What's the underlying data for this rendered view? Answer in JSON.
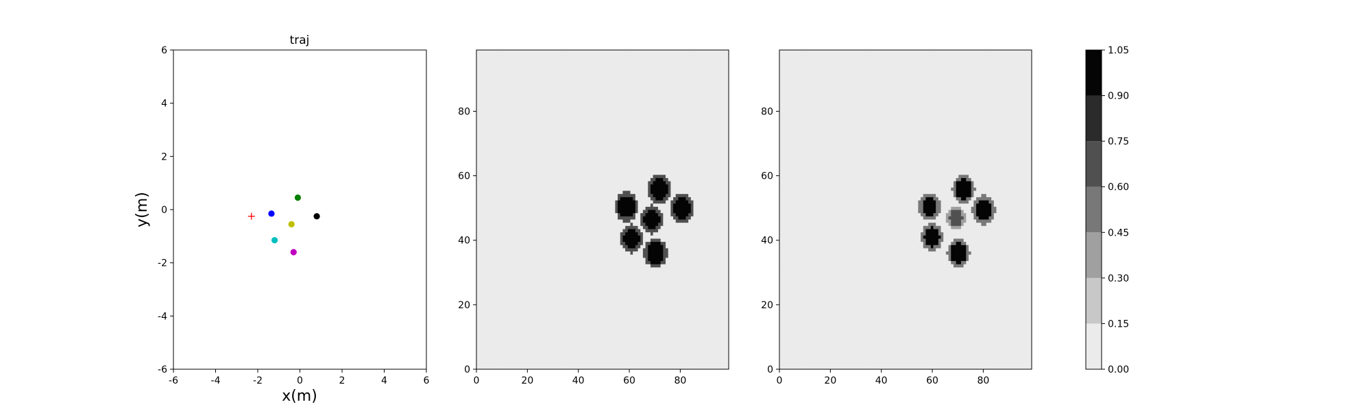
{
  "chart_data": [
    {
      "type": "scatter",
      "title": "traj",
      "xlabel": "x(m)",
      "ylabel": "y(m)",
      "xlim": [
        -6,
        6
      ],
      "ylim": [
        -6,
        6
      ],
      "xticks": [
        -6,
        -4,
        -2,
        0,
        2,
        4,
        6
      ],
      "yticks": [
        -6,
        -4,
        -2,
        0,
        2,
        4,
        6
      ],
      "grid": false,
      "series": [
        {
          "marker": "plus",
          "color": "#ff0000",
          "x": -2.3,
          "y": -0.25
        },
        {
          "marker": "circle",
          "color": "#0000ff",
          "x": -1.35,
          "y": -0.15
        },
        {
          "marker": "circle",
          "color": "#008000",
          "x": -0.1,
          "y": 0.45
        },
        {
          "marker": "circle",
          "color": "#000000",
          "x": 0.8,
          "y": -0.25
        },
        {
          "marker": "circle",
          "color": "#bfbf00",
          "x": -0.4,
          "y": -0.55
        },
        {
          "marker": "circle",
          "color": "#00bfbf",
          "x": -1.2,
          "y": -1.15
        },
        {
          "marker": "circle",
          "color": "#bf00bf",
          "x": -0.3,
          "y": -1.6
        }
      ]
    },
    {
      "type": "heatmap",
      "xlim": [
        0,
        99
      ],
      "ylim": [
        0,
        99
      ],
      "xticks": [
        0,
        20,
        40,
        60,
        80
      ],
      "yticks": [
        0,
        20,
        40,
        60,
        80
      ],
      "background_level": 0.08,
      "blobs": [
        {
          "x": 72,
          "y": 56,
          "r": 3.6,
          "level": 1.0
        },
        {
          "x": 59,
          "y": 50.5,
          "r": 3.4,
          "level": 1.0
        },
        {
          "x": 81,
          "y": 50,
          "r": 3.4,
          "level": 1.0
        },
        {
          "x": 69,
          "y": 46.5,
          "r": 3.2,
          "level": 1.0
        },
        {
          "x": 61,
          "y": 40.5,
          "r": 3.2,
          "level": 1.0
        },
        {
          "x": 70.5,
          "y": 36,
          "r": 3.4,
          "level": 1.0
        }
      ]
    },
    {
      "type": "heatmap",
      "xlim": [
        0,
        99
      ],
      "ylim": [
        0,
        99
      ],
      "xticks": [
        0,
        20,
        40,
        60,
        80
      ],
      "yticks": [
        0,
        20,
        40,
        60,
        80
      ],
      "background_level": 0.08,
      "blobs": [
        {
          "x": 72.5,
          "y": 56,
          "r": 3.3,
          "level": 1.0
        },
        {
          "x": 59,
          "y": 50.5,
          "r": 3.0,
          "level": 1.0
        },
        {
          "x": 80.5,
          "y": 49.5,
          "r": 3.3,
          "level": 1.0
        },
        {
          "x": 69.5,
          "y": 47,
          "r": 2.6,
          "level": 0.65
        },
        {
          "x": 60,
          "y": 41,
          "r": 3.0,
          "level": 1.0
        },
        {
          "x": 70.5,
          "y": 36,
          "r": 3.3,
          "level": 1.0
        }
      ]
    },
    {
      "type": "colorbar",
      "levels": [
        0.0,
        0.15,
        0.3,
        0.45,
        0.6,
        0.75,
        0.9,
        1.05
      ],
      "tick_labels": [
        "0.00",
        "0.15",
        "0.30",
        "0.45",
        "0.60",
        "0.75",
        "0.90",
        "1.05"
      ],
      "colors": [
        "#ebebeb",
        "#c8c8c8",
        "#a0a0a0",
        "#787878",
        "#505050",
        "#2b2b2b",
        "#050505"
      ]
    }
  ]
}
